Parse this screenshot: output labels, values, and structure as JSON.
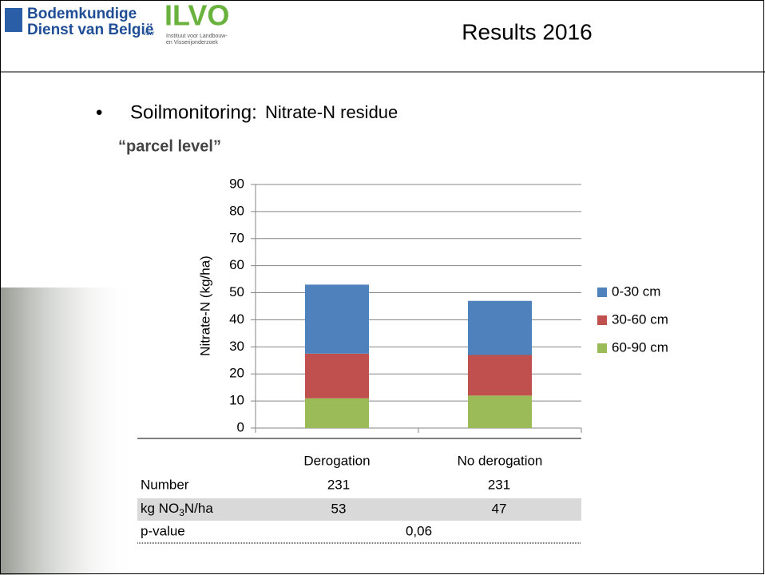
{
  "header": {
    "logo_line1": "Bodemkundige",
    "logo_line2": "Dienst van België",
    "logo_vzw": "vzw",
    "ilvo": "ILVO",
    "ilvo_sub1": "Instituut voor Landbouw-",
    "ilvo_sub2": "en Visserijonderzoek",
    "title": "Results 2016"
  },
  "bullet": {
    "lead": "Soilmonitoring:",
    "text": "Nitrate-N residue",
    "sub": "“parcel level”"
  },
  "chart_data": {
    "type": "stacked_bar",
    "ylabel": "Nitrate-N (kg/ha)",
    "categories": [
      "Derogation",
      "No derogation"
    ],
    "series": [
      {
        "name": "0-30 cm",
        "color": "#4f81bd",
        "values": [
          25.5,
          20
        ]
      },
      {
        "name": "30-60 cm",
        "color": "#c0504d",
        "values": [
          16.5,
          15
        ]
      },
      {
        "name": "60-90 cm",
        "color": "#9bbb59",
        "values": [
          11,
          12
        ]
      }
    ],
    "ylim": [
      0,
      90
    ],
    "yticks": [
      0,
      10,
      20,
      30,
      40,
      50,
      60,
      70,
      80,
      90
    ],
    "grid": true,
    "legend": "right"
  },
  "table": {
    "rows": [
      [
        "Number",
        "231",
        "231"
      ],
      [
        [
          "kg NO",
          "3",
          "N/ha"
        ],
        "53",
        "47"
      ],
      [
        "p-value",
        "0,06"
      ]
    ]
  }
}
